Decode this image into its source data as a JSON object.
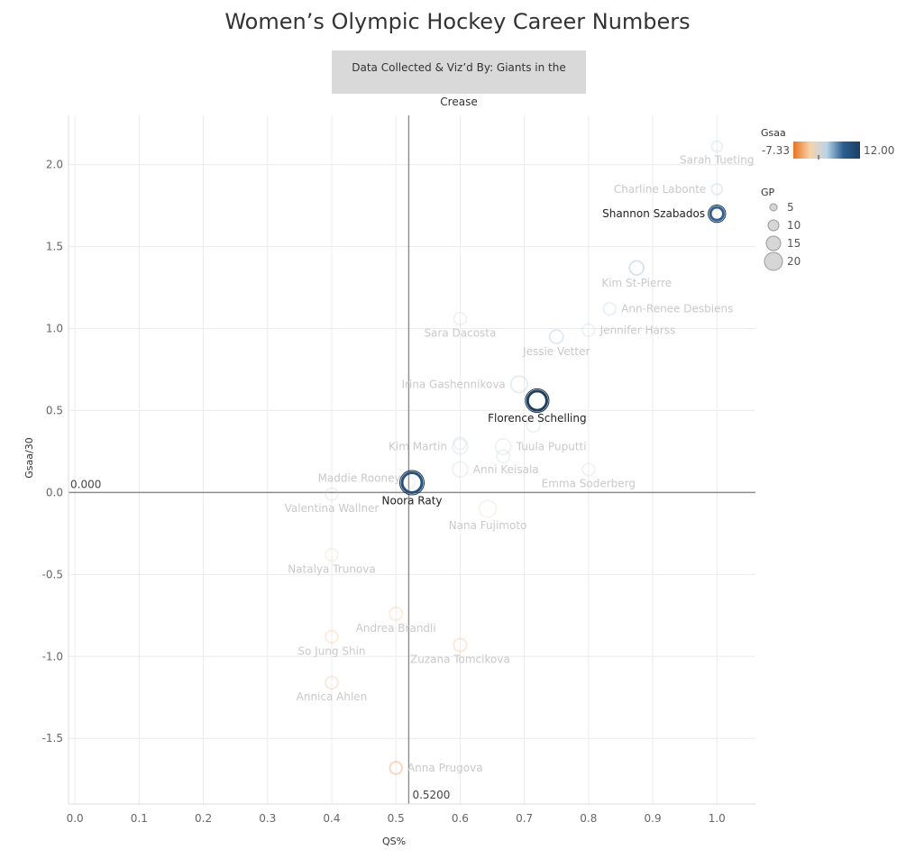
{
  "title": "Women’s Olympic Hockey Career Numbers",
  "credit": "Data Collected & Viz’d By: Giants in the Crease",
  "chart_data": {
    "type": "scatter",
    "xlabel": "QS%",
    "ylabel": "Gsaa/30",
    "xlim": [
      -0.01,
      1.06
    ],
    "ylim": [
      -1.9,
      2.3
    ],
    "xticks": [
      "0.0",
      "0.1",
      "0.2",
      "0.3",
      "0.4",
      "0.5",
      "0.6",
      "0.7",
      "0.8",
      "0.9",
      "1.0"
    ],
    "yticks": [
      "2.0",
      "1.5",
      "1.0",
      "0.5",
      "0.0",
      "-0.5",
      "-1.0",
      "-1.5"
    ],
    "grid": true,
    "reference_lines": [
      {
        "axis": "y",
        "value": 0.0,
        "label": "0.000"
      },
      {
        "axis": "x",
        "value": 0.52,
        "label": "0.5200"
      }
    ],
    "color_legend": {
      "title": "Gsaa",
      "min_label": "-7.33",
      "max_label": "12.00",
      "min": -7.33,
      "max": 12.0,
      "colors": [
        "#e8731e",
        "#f7d3a8",
        "#b9d4ea",
        "#2a5d8f",
        "#1c3e63"
      ]
    },
    "size_legend": {
      "title": "GP",
      "entries": [
        {
          "label": "5",
          "value": 5
        },
        {
          "label": "10",
          "value": 10
        },
        {
          "label": "15",
          "value": 15
        },
        {
          "label": "20",
          "value": 20
        }
      ]
    },
    "points": [
      {
        "name": "Sarah Tueting",
        "x": 1.0,
        "y": 2.11,
        "gsaa": 2.5,
        "gp": 3,
        "highlight": false
      },
      {
        "name": "Charline Labonte",
        "x": 1.0,
        "y": 1.85,
        "gsaa": 3.0,
        "gp": 3,
        "highlight": false
      },
      {
        "name": "Shannon Szabados",
        "x": 1.0,
        "y": 1.7,
        "gsaa": 7.0,
        "gp": 6,
        "highlight": true
      },
      {
        "name": "Kim St-Pierre",
        "x": 0.875,
        "y": 1.37,
        "gsaa": 4.5,
        "gp": 8,
        "highlight": false
      },
      {
        "name": "Ann-Renee Desbiens",
        "x": 0.833,
        "y": 1.12,
        "gsaa": 2.5,
        "gp": 5,
        "highlight": false
      },
      {
        "name": "Sara Dacosta",
        "x": 0.6,
        "y": 1.06,
        "gsaa": 2.0,
        "gp": 5,
        "highlight": false
      },
      {
        "name": "Jennifer Harss",
        "x": 0.8,
        "y": 0.99,
        "gsaa": 2.0,
        "gp": 5,
        "highlight": false
      },
      {
        "name": "Jessie Vetter",
        "x": 0.75,
        "y": 0.95,
        "gsaa": 3.5,
        "gp": 7,
        "highlight": false
      },
      {
        "name": "Irina Gashennikova",
        "x": 0.692,
        "y": 0.66,
        "gsaa": 3.0,
        "gp": 13,
        "highlight": false
      },
      {
        "name": "Florence Schelling",
        "x": 0.72,
        "y": 0.56,
        "gsaa": 12.0,
        "gp": 20,
        "highlight": true
      },
      {
        "name": "",
        "x": 0.714,
        "y": 0.41,
        "gsaa": 1.0,
        "gp": 7,
        "highlight": false
      },
      {
        "name": "Kim Martin",
        "x": 0.6,
        "y": 0.28,
        "gsaa": 2.0,
        "gp": 10,
        "highlight": false
      },
      {
        "name": "",
        "x": 0.6,
        "y": 0.3,
        "gsaa": 1.0,
        "gp": 5,
        "highlight": false
      },
      {
        "name": "Tuula Puputti",
        "x": 0.667,
        "y": 0.28,
        "gsaa": 1.5,
        "gp": 11,
        "highlight": false
      },
      {
        "name": "",
        "x": 0.667,
        "y": 0.22,
        "gsaa": 0.8,
        "gp": 6,
        "highlight": false
      },
      {
        "name": "Anni Keisala",
        "x": 0.6,
        "y": 0.14,
        "gsaa": 1.0,
        "gp": 10,
        "highlight": false
      },
      {
        "name": "Emma Soderberg",
        "x": 0.8,
        "y": 0.14,
        "gsaa": 0.7,
        "gp": 5,
        "highlight": false
      },
      {
        "name": "Noora Raty",
        "x": 0.525,
        "y": 0.06,
        "gsaa": 9.0,
        "gp": 22,
        "highlight": true
      },
      {
        "name": "Maddie Rooney",
        "x": 0.52,
        "y": 0.06,
        "gsaa": 0.3,
        "gp": 5,
        "highlight": false
      },
      {
        "name": "Valentina Wallner",
        "x": 0.4,
        "y": -0.01,
        "gsaa": -0.1,
        "gp": 5,
        "highlight": false
      },
      {
        "name": "Nana Fujimoto",
        "x": 0.643,
        "y": -0.1,
        "gsaa": -1.2,
        "gp": 14,
        "highlight": false
      },
      {
        "name": "Natalya Trunova",
        "x": 0.4,
        "y": -0.38,
        "gsaa": -1.5,
        "gp": 5,
        "highlight": false
      },
      {
        "name": "Andrea Brandli",
        "x": 0.5,
        "y": -0.74,
        "gsaa": -3.5,
        "gp": 6,
        "highlight": false
      },
      {
        "name": "So Jung Shin",
        "x": 0.4,
        "y": -0.88,
        "gsaa": -3.8,
        "gp": 5,
        "highlight": false
      },
      {
        "name": "Zuzana Tomcikova",
        "x": 0.6,
        "y": -0.93,
        "gsaa": -4.2,
        "gp": 6,
        "highlight": false
      },
      {
        "name": "Annica Ahlen",
        "x": 0.4,
        "y": -1.16,
        "gsaa": -4.0,
        "gp": 5,
        "highlight": false
      },
      {
        "name": "Anna Prugova",
        "x": 0.5,
        "y": -1.68,
        "gsaa": -7.33,
        "gp": 5,
        "highlight": false
      }
    ],
    "label_placement": {
      "Sarah Tueting": "below",
      "Charline Labonte": "left",
      "Shannon Szabados": "left",
      "Kim St-Pierre": "below",
      "Ann-Renee Desbiens": "right",
      "Sara Dacosta": "below",
      "Jennifer Harss": "right",
      "Jessie Vetter": "below",
      "Irina Gashennikova": "left",
      "Florence Schelling": "below",
      "Kim Martin": "left",
      "Tuula Puputti": "right",
      "Anni Keisala": "right",
      "Emma Soderberg": "below",
      "Noora Raty": "below",
      "Maddie Rooney": "left-above",
      "Valentina Wallner": "below",
      "Nana Fujimoto": "below",
      "Natalya Trunova": "below",
      "Andrea Brandli": "below",
      "So Jung Shin": "below",
      "Zuzana Tomcikova": "below",
      "Annica Ahlen": "below",
      "Anna Prugova": "right"
    }
  }
}
